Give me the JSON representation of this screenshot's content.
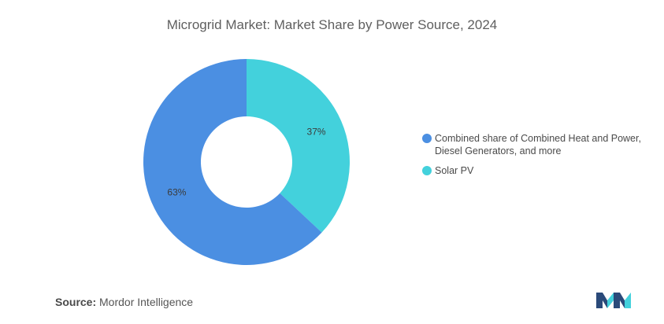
{
  "chart_data": {
    "type": "pie",
    "donut": true,
    "title": "Microgrid Market: Market Share by Power Source, 2024",
    "slices": [
      {
        "label": "Combined share of Combined Heat and Power, Diesel Generators, and more",
        "value": 63,
        "display": "63%",
        "color": "#4b8fe2"
      },
      {
        "label": "Solar PV",
        "value": 37,
        "display": "37%",
        "color": "#43d1dc"
      }
    ],
    "legend_position": "right"
  },
  "legend": {
    "item_1": "Combined share of Combined Heat and Power, Diesel Generators, and more",
    "item_2": "Solar PV"
  },
  "source": {
    "label": "Source:",
    "text": "Mordor Intelligence"
  },
  "logo": {
    "icon": "mordor-intelligence-logo",
    "colors": [
      "#2a4a7a",
      "#43d1dc"
    ]
  }
}
